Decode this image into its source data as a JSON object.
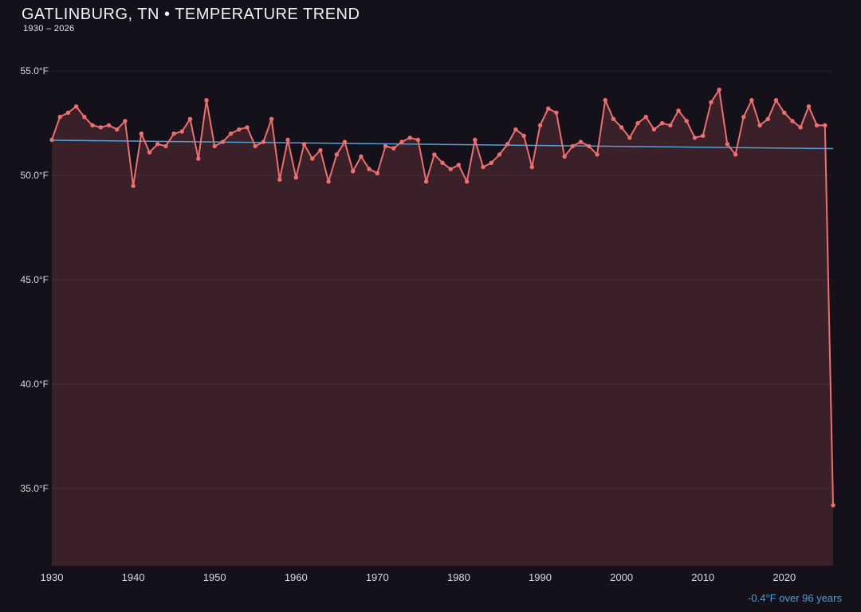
{
  "header": {
    "title": "GATLINBURG, TN • TEMPERATURE TREND",
    "subtitle": "1930 – 2026"
  },
  "footer": {
    "trend_summary": "-0.4°F over 96 years"
  },
  "chart_data": {
    "type": "line",
    "title": "GATLINBURG, TN • TEMPERATURE TREND",
    "subtitle": "1930 – 2026",
    "xlabel": "",
    "ylabel": "",
    "x_start": 1930,
    "x_end": 2026,
    "x_step": 1,
    "ylim": [
      31.3,
      56.3
    ],
    "grid": "horizontal-only",
    "legend_position": "none",
    "values": [
      51.7,
      52.8,
      53.0,
      53.3,
      52.8,
      52.4,
      52.3,
      52.4,
      52.2,
      52.6,
      49.5,
      52.0,
      51.1,
      51.5,
      51.4,
      52.0,
      52.1,
      52.7,
      50.8,
      53.6,
      51.4,
      51.6,
      52.0,
      52.2,
      52.3,
      51.4,
      51.6,
      52.7,
      49.8,
      51.7,
      49.9,
      51.5,
      50.8,
      51.2,
      49.7,
      51.0,
      51.6,
      50.2,
      50.9,
      50.3,
      50.1,
      51.4,
      51.3,
      51.6,
      51.8,
      51.7,
      49.7,
      51.0,
      50.6,
      50.3,
      50.5,
      49.7,
      51.7,
      50.4,
      50.6,
      51.0,
      51.5,
      52.2,
      51.9,
      50.4,
      52.4,
      53.2,
      53.0,
      50.9,
      51.4,
      51.6,
      51.4,
      51.0,
      53.6,
      52.7,
      52.3,
      51.8,
      52.5,
      52.8,
      52.2,
      52.5,
      52.4,
      53.1,
      52.6,
      51.8,
      51.9,
      53.5,
      54.1,
      51.5,
      51.0,
      52.8,
      53.6,
      52.4,
      52.7,
      53.6,
      53.0,
      52.6,
      52.3,
      53.3,
      52.4,
      52.4,
      34.2
    ],
    "y_ticks": [
      {
        "value": 55,
        "label": "55.0°F"
      },
      {
        "value": 50,
        "label": "50.0°F"
      },
      {
        "value": 45,
        "label": "45.0°F"
      },
      {
        "value": 40,
        "label": "40.0°F"
      },
      {
        "value": 35,
        "label": "35.0°F"
      }
    ],
    "x_ticks": [
      {
        "value": 1930,
        "label": "1930"
      },
      {
        "value": 1940,
        "label": "1940"
      },
      {
        "value": 1950,
        "label": "1950"
      },
      {
        "value": 1960,
        "label": "1960"
      },
      {
        "value": 1970,
        "label": "1970"
      },
      {
        "value": 1980,
        "label": "1980"
      },
      {
        "value": 1990,
        "label": "1990"
      },
      {
        "value": 2000,
        "label": "2000"
      },
      {
        "value": 2010,
        "label": "2010"
      },
      {
        "value": 2020,
        "label": "2020"
      }
    ],
    "trend": {
      "start_value": 51.68,
      "end_value": 51.28,
      "label": "-0.4°F over 96 years"
    },
    "colors": {
      "background": "#14111a",
      "line": "#ef6e6e",
      "area_fill": "#3a2129",
      "trend_line": "#56a0d6",
      "grid": "rgba(255,255,255,0.07)",
      "title_text": "#f3f3f5",
      "tick_text": "#d9d9de",
      "footer_text": "#4f9fd6"
    }
  }
}
